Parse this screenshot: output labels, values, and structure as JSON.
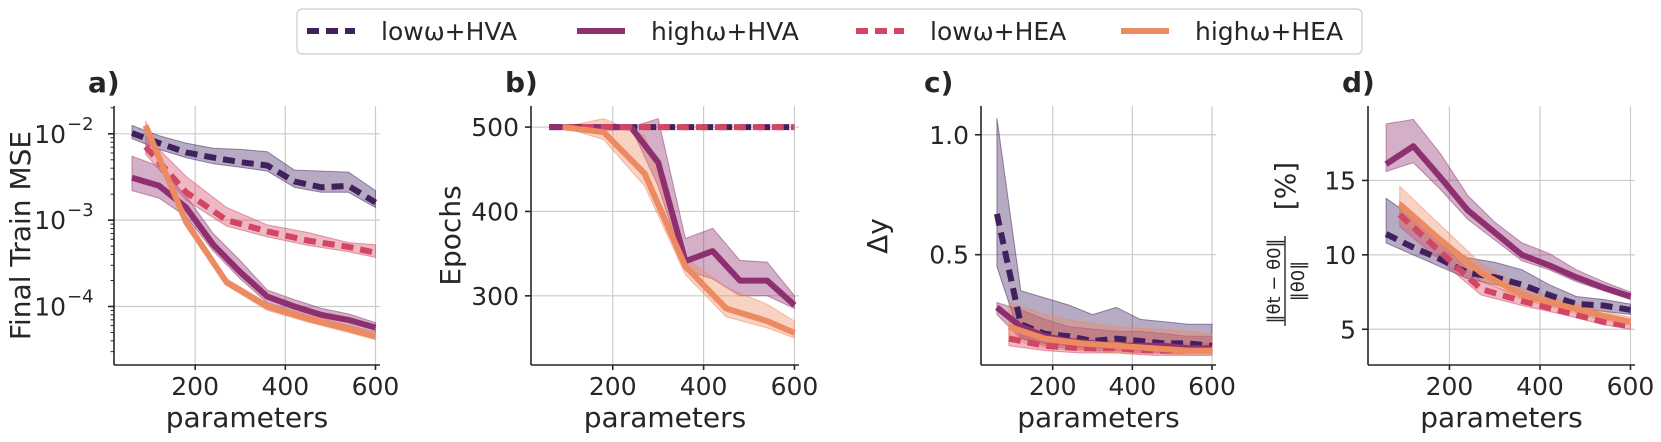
{
  "legend": [
    {
      "key": "lowHVA",
      "label": "lowω+HVA",
      "color": "#40215e",
      "dash": true
    },
    {
      "key": "highHVA",
      "label": "highω+HVA",
      "color": "#8f2f6f",
      "dash": false
    },
    {
      "key": "lowHEA",
      "label": "lowω+HEA",
      "color": "#d24563",
      "dash": true
    },
    {
      "key": "highHEA",
      "label": "highω+HEA",
      "color": "#ec8a62",
      "dash": false
    }
  ],
  "chart_data": [
    {
      "panel": "a)",
      "type": "line",
      "ylabel": "Final Train MSE",
      "xlabel": "parameters",
      "yscale": "log",
      "xlim": [
        20,
        610
      ],
      "ylim": [
        2.1e-05,
        0.021
      ],
      "xticks": [
        200,
        400,
        600
      ],
      "xtick_labels": [
        "200",
        "400",
        "600"
      ],
      "yticks": [
        0.0001,
        0.001,
        0.01
      ],
      "ytick_labels": [
        "10",
        "10",
        "10"
      ],
      "ytick_exps": [
        "−4",
        "−3",
        "−2"
      ],
      "series": [
        {
          "key": "lowHVA",
          "x": [
            60,
            120,
            180,
            240,
            300,
            360,
            420,
            480,
            540,
            600
          ],
          "y": [
            0.0102,
            0.0078,
            0.0061,
            0.0053,
            0.0047,
            0.0043,
            0.0028,
            0.0024,
            0.0025,
            0.0016
          ],
          "upper": [
            0.0125,
            0.0095,
            0.0078,
            0.0068,
            0.0066,
            0.0062,
            0.0038,
            0.0037,
            0.0036,
            0.0022
          ],
          "lower": [
            0.0088,
            0.0066,
            0.0053,
            0.0045,
            0.0041,
            0.0037,
            0.0024,
            0.0021,
            0.0021,
            0.0014
          ]
        },
        {
          "key": "highHVA",
          "x": [
            60,
            120,
            180,
            240,
            300,
            360,
            420,
            480,
            540,
            600
          ],
          "y": [
            0.0031,
            0.0025,
            0.0014,
            0.00052,
            0.00025,
            0.00013,
            0.0001,
            8e-05,
            7e-05,
            5.7e-05
          ],
          "upper": [
            0.0055,
            0.0042,
            0.0019,
            0.0007,
            0.00034,
            0.000155,
            0.00012,
            9.5e-05,
            8.2e-05,
            6.5e-05
          ],
          "lower": [
            0.0022,
            0.0018,
            0.0011,
            0.00044,
            0.00021,
            0.00011,
            8.7e-05,
            7e-05,
            6e-05,
            5e-05
          ]
        },
        {
          "key": "lowHEA",
          "x": [
            90,
            180,
            270,
            360,
            450,
            540,
            600
          ],
          "y": [
            0.0071,
            0.0021,
            0.001,
            0.00074,
            0.00058,
            0.00049,
            0.00042
          ],
          "upper": [
            0.0095,
            0.0032,
            0.0014,
            0.00088,
            0.00072,
            0.00055,
            0.00052
          ],
          "lower": [
            0.0058,
            0.0017,
            0.00085,
            0.00064,
            0.00051,
            0.00043,
            0.00037
          ]
        },
        {
          "key": "highHEA",
          "x": [
            90,
            180,
            270,
            360,
            450,
            540,
            600
          ],
          "y": [
            0.0125,
            0.00095,
            0.00019,
            0.0001,
            7.2e-05,
            5.5e-05,
            4.5e-05
          ],
          "upper": [
            0.0142,
            0.0011,
            0.00021,
            0.00011,
            8e-05,
            6.1e-05,
            5e-05
          ],
          "lower": [
            0.011,
            0.00084,
            0.000175,
            9e-05,
            6.6e-05,
            5e-05,
            4.1e-05
          ]
        }
      ]
    },
    {
      "panel": "b)",
      "type": "line",
      "ylabel": "Epochs",
      "xlabel": "parameters",
      "yscale": "linear",
      "xlim": [
        20,
        610
      ],
      "ylim": [
        218,
        525
      ],
      "xticks": [
        200,
        400,
        600
      ],
      "xtick_labels": [
        "200",
        "400",
        "600"
      ],
      "yticks": [
        300,
        400,
        500
      ],
      "ytick_labels": [
        "300",
        "400",
        "500"
      ],
      "series": [
        {
          "key": "lowHVA",
          "x": [
            60,
            120,
            180,
            240,
            300,
            360,
            420,
            480,
            540,
            600
          ],
          "y": [
            500,
            500,
            500,
            500,
            500,
            500,
            500,
            500,
            500,
            500
          ]
        },
        {
          "key": "highHVA",
          "x": [
            60,
            120,
            180,
            240,
            300,
            360,
            420,
            480,
            540,
            600
          ],
          "y": [
            500,
            500,
            500,
            500,
            458,
            341,
            353,
            318,
            318,
            289
          ],
          "upper": [
            500,
            500,
            500,
            500,
            510,
            368,
            380,
            342,
            340,
            300
          ],
          "lower": [
            500,
            500,
            500,
            500,
            430,
            330,
            320,
            300,
            300,
            285
          ]
        },
        {
          "key": "lowHEA",
          "x": [
            90,
            180,
            270,
            360,
            450,
            540,
            600
          ],
          "y": [
            500,
            500,
            500,
            500,
            500,
            500,
            500
          ]
        },
        {
          "key": "highHEA",
          "x": [
            90,
            180,
            270,
            360,
            450,
            540,
            600
          ],
          "y": [
            500,
            494,
            445,
            335,
            285,
            270,
            256
          ],
          "upper": [
            500,
            510,
            490,
            345,
            310,
            290,
            270
          ],
          "lower": [
            500,
            485,
            430,
            325,
            275,
            262,
            250
          ]
        }
      ]
    },
    {
      "panel": "c)",
      "type": "line",
      "ylabel": "Δy",
      "xlabel": "parameters",
      "yscale": "linear",
      "xlim": [
        20,
        610
      ],
      "ylim": [
        0.04,
        1.12
      ],
      "xticks": [
        200,
        400,
        600
      ],
      "xtick_labels": [
        "200",
        "400",
        "600"
      ],
      "yticks": [
        0.5,
        1.0
      ],
      "ytick_labels": [
        "0.5",
        "1.0"
      ],
      "series": [
        {
          "key": "lowHVA",
          "x": [
            60,
            120,
            180,
            240,
            300,
            360,
            420,
            480,
            540,
            600
          ],
          "y": [
            0.67,
            0.21,
            0.17,
            0.16,
            0.14,
            0.15,
            0.14,
            0.13,
            0.13,
            0.12
          ],
          "upper": [
            1.07,
            0.35,
            0.32,
            0.29,
            0.25,
            0.28,
            0.23,
            0.22,
            0.21,
            0.21
          ],
          "lower": [
            0.45,
            0.15,
            0.13,
            0.12,
            0.11,
            0.11,
            0.1,
            0.1,
            0.09,
            0.09
          ]
        },
        {
          "key": "highHVA",
          "x": [
            60,
            120,
            180,
            240,
            300,
            360,
            420,
            480,
            540,
            600
          ],
          "y": [
            0.28,
            0.2,
            0.16,
            0.14,
            0.13,
            0.12,
            0.12,
            0.12,
            0.11,
            0.11
          ],
          "upper": [
            0.3,
            0.27,
            0.23,
            0.2,
            0.19,
            0.18,
            0.18,
            0.17,
            0.16,
            0.16
          ],
          "lower": [
            0.25,
            0.15,
            0.12,
            0.11,
            0.1,
            0.1,
            0.09,
            0.09,
            0.09,
            0.09
          ]
        },
        {
          "key": "lowHEA",
          "x": [
            90,
            180,
            270,
            360,
            450,
            540,
            600
          ],
          "y": [
            0.15,
            0.12,
            0.11,
            0.11,
            0.1,
            0.1,
            0.1
          ],
          "upper": [
            0.2,
            0.16,
            0.15,
            0.14,
            0.13,
            0.13,
            0.13
          ],
          "lower": [
            0.12,
            0.1,
            0.09,
            0.09,
            0.08,
            0.08,
            0.08
          ]
        },
        {
          "key": "highHEA",
          "x": [
            90,
            180,
            270,
            360,
            450,
            540,
            600
          ],
          "y": [
            0.2,
            0.15,
            0.13,
            0.12,
            0.11,
            0.1,
            0.1
          ],
          "upper": [
            0.3,
            0.25,
            0.22,
            0.2,
            0.19,
            0.18,
            0.17
          ],
          "lower": [
            0.15,
            0.11,
            0.1,
            0.09,
            0.09,
            0.08,
            0.08
          ]
        }
      ]
    },
    {
      "panel": "d)",
      "type": "line",
      "ylabel": "[%]",
      "ylabel_num": "‖θt − θ0‖",
      "ylabel_den": "‖θ0‖",
      "xlabel": "parameters",
      "yscale": "linear",
      "xlim": [
        20,
        610
      ],
      "ylim": [
        2.6,
        20
      ],
      "xticks": [
        200,
        400,
        600
      ],
      "xtick_labels": [
        "200",
        "400",
        "600"
      ],
      "yticks": [
        5,
        10,
        15
      ],
      "ytick_labels": [
        "5",
        "10",
        "15"
      ],
      "series": [
        {
          "key": "lowHVA",
          "x": [
            60,
            120,
            180,
            240,
            300,
            360,
            420,
            480,
            540,
            600
          ],
          "y": [
            11.4,
            10.5,
            9.7,
            8.8,
            8.5,
            8.0,
            7.3,
            6.7,
            6.6,
            6.3
          ],
          "upper": [
            13.8,
            12.5,
            11.0,
            9.8,
            9.5,
            9.0,
            8.0,
            7.2,
            7.0,
            6.7
          ],
          "lower": [
            10.8,
            10.0,
            9.2,
            8.4,
            8.0,
            7.5,
            6.9,
            6.4,
            6.2,
            6.0
          ]
        },
        {
          "key": "highHVA",
          "x": [
            60,
            120,
            180,
            240,
            300,
            360,
            420,
            480,
            540,
            600
          ],
          "y": [
            16.1,
            17.3,
            15.2,
            13.0,
            11.5,
            10.0,
            9.3,
            8.5,
            7.8,
            7.2
          ],
          "upper": [
            18.8,
            19.1,
            16.8,
            14.0,
            12.2,
            10.8,
            10.1,
            9.0,
            8.2,
            7.5
          ],
          "lower": [
            15.6,
            16.2,
            14.4,
            12.4,
            11.0,
            9.6,
            9.0,
            8.2,
            7.6,
            7.0
          ]
        },
        {
          "key": "lowHEA",
          "x": [
            90,
            180,
            270,
            360,
            450,
            540,
            600
          ],
          "y": [
            12.7,
            10.2,
            7.7,
            6.9,
            6.2,
            5.5,
            5.2
          ],
          "upper": [
            13.6,
            10.8,
            8.2,
            7.2,
            6.5,
            5.8,
            5.4
          ],
          "lower": [
            11.9,
            9.6,
            7.3,
            6.6,
            6.0,
            5.3,
            5.0
          ]
        },
        {
          "key": "highHEA",
          "x": [
            90,
            180,
            270,
            360,
            450,
            540,
            600
          ],
          "y": [
            13.4,
            11.0,
            8.8,
            7.3,
            6.6,
            5.9,
            5.5
          ],
          "upper": [
            14.6,
            12.0,
            9.4,
            7.8,
            7.0,
            6.2,
            5.8
          ],
          "lower": [
            12.3,
            10.3,
            8.3,
            7.0,
            6.3,
            5.6,
            5.3
          ]
        }
      ]
    }
  ]
}
